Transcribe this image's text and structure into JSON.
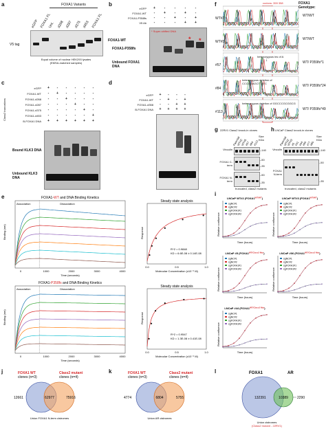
{
  "panel_letters": [
    "a",
    "b",
    "c",
    "d",
    "e",
    "f",
    "g",
    "h",
    "i",
    "j",
    "k",
    "l"
  ],
  "panel_a": {
    "lanes": [
      "eGFP",
      "FOXA1 FL",
      "Unt.",
      "d268",
      "d287",
      "d375",
      "d453",
      "FOXA1 FL"
    ],
    "group_label": "FOXA1 Variants",
    "side_label": "V5 tag",
    "caption_line1": "Equal volume of nuclear HEK293 lysates",
    "caption_line2": "(EMSA-matched samples)"
  },
  "panel_b": {
    "rows": [
      {
        "label": "eGFP",
        "marks": [
          "+",
          "-",
          "-",
          "-",
          "-"
        ]
      },
      {
        "label": "FOXA1-WT",
        "marks": [
          "-",
          "+",
          "-",
          "+",
          "-"
        ]
      },
      {
        "label": "FOXA1-P358fs",
        "marks": [
          "-",
          "-",
          "+",
          "-",
          "+"
        ]
      },
      {
        "label": "V5 Ab",
        "marks": [
          "-",
          "-",
          "-",
          "+",
          "+"
        ]
      }
    ],
    "legend_star": "*",
    "legend_text": "Super-shifted DNA",
    "label_wt": "FOXA1-WT",
    "label_fs": "FOXA1-P358fs",
    "label_unbound": "Unbound FOXA1 DNA"
  },
  "panel_c": {
    "rows": [
      {
        "label": "eGFP",
        "marks": [
          "+",
          "-",
          "-",
          "-",
          "-",
          "-"
        ]
      },
      {
        "label": "FOXA1-WT",
        "marks": [
          "-",
          "+",
          "-",
          "-",
          "-",
          "-"
        ]
      },
      {
        "label": "FOXA1-d268",
        "marks": [
          "-",
          "-",
          "+",
          "-",
          "-",
          "-"
        ]
      },
      {
        "label": "FOXA1-d287",
        "marks": [
          "-",
          "-",
          "-",
          "+",
          "-",
          "-"
        ]
      },
      {
        "label": "FOXA1-d375",
        "marks": [
          "-",
          "-",
          "-",
          "-",
          "+",
          "-"
        ]
      },
      {
        "label": "FOXA1-d453",
        "marks": [
          "-",
          "-",
          "-",
          "-",
          "-",
          "+"
        ]
      },
      {
        "label": "B-FOXA1 DNA",
        "marks": [
          "+",
          "+",
          "+",
          "+",
          "+",
          "+"
        ]
      }
    ],
    "side_label": "Class2 truncations",
    "label_bound": "Bound KLK3 DNA",
    "label_unbound": "Unbound KLK3 DNA"
  },
  "panel_d": {
    "rows": [
      {
        "label": "eGFP",
        "marks": [
          "+",
          "-",
          "-",
          "-"
        ]
      },
      {
        "label": "FOXA1-WT",
        "marks": [
          "-",
          "+",
          "-",
          "+"
        ]
      },
      {
        "label": "FOXA1-d358",
        "marks": [
          "-",
          "-",
          "+",
          "+"
        ]
      },
      {
        "label": "B-FOXA1 DNA",
        "marks": [
          "+",
          "+",
          "+",
          "+"
        ]
      }
    ]
  },
  "panel_e": {
    "kinetics": [
      {
        "title_prefix": "FOXA1-",
        "title_variant": "WT",
        "title_suffix": " and DNA Binding Kinetics"
      },
      {
        "title_prefix": "FOXA1-",
        "title_variant": "P358fs",
        "title_suffix": " and DNA Binding Kinetics"
      }
    ],
    "association_label": "Association",
    "dissociation_label": "Dissociation",
    "xlabel": "Time (seconds)",
    "ylabel": "Binding (nm)",
    "xticks": [
      "0",
      "1000",
      "2000",
      "3000",
      "4000"
    ],
    "steady_title": "Steady state analysis",
    "steady_xlabel": "Molecular Concentration (x10⁻⁶ M)",
    "steady_ylabel": "Response",
    "steady_stats": [
      {
        "r2": "R^2 = 0.9848",
        "kd": "KD = 6.6E-08 ± 0.14E-08"
      },
      {
        "r2": "R^2 = 0.9547",
        "kd": "KD = 1.3E-08 ± 0.41E-08"
      }
    ],
    "steady_xticks": [
      "0.0",
      "0.5",
      "1.0"
    ]
  },
  "panel_f": {
    "header": "codons: 359   358",
    "genotype_title": "FOXA1 Genotype:",
    "samples": [
      {
        "clone": "WT#2",
        "genotype": "WT/WT",
        "note": ""
      },
      {
        "clone": "WT#5",
        "genotype": "WT/WT",
        "note": ""
      },
      {
        "clone": "#57",
        "genotype": "WT/ P359fs*1",
        "note": "heterozygous ins of A"
      },
      {
        "clone": "#84",
        "genotype": "WT/ P359fs*24",
        "note": "heterozygous deletion of CCCGGAGCTTATC"
      },
      {
        "clone": "#113",
        "genotype": "WT/ P359fs*49",
        "note": "heterozygous deletion of GGCCCGCGGCG"
      }
    ],
    "trace_colors": [
      "#2ca02c",
      "#1f77b4",
      "#111111",
      "#d62728"
    ]
  },
  "panel_g": {
    "title": "22RV1 Class2 knock-in clones",
    "lanes": [
      "Parental",
      "WT#2",
      "WT#5",
      "#57",
      "#84",
      "#113"
    ],
    "size_label": "Size KDa",
    "rows": [
      {
        "label": "Vinculin",
        "sizes": [
          "140"
        ]
      },
      {
        "label": "FOXA1 C-term",
        "sizes": [
          "50",
          "35"
        ]
      },
      {
        "label": "FOXA1 N-term",
        "sizes": [
          "50",
          "35"
        ]
      }
    ]
  },
  "panel_h": {
    "title": "LNCaP Class2 knock-in clones",
    "lanes": [
      "Parental",
      "WT#2",
      "WT#3",
      "#5",
      "#31",
      "#44",
      "#60",
      "#77",
      "#80"
    ],
    "size_label": "Size KDa",
    "rows": [
      {
        "label": "Vinculin",
        "sizes": [
          "140"
        ]
      },
      {
        "label": "FOXA1 N-term",
        "sizes": [
          "50",
          "35"
        ]
      }
    ],
    "footer": "truncated, class2 mutants"
  },
  "panel_g_footer": "truncated, class2 mutants",
  "panel_i": {
    "xlabel": "Time (hours)",
    "ylabel": "Relative confluence",
    "legend": [
      "sgNC#1",
      "sgNC#2",
      "sgFOXA1#1",
      "sgFOXA1#2"
    ],
    "legend_colors": [
      "#1f77b4",
      "#d62728",
      "#2ca02c",
      "#9467bd"
    ],
    "plots": [
      {
        "title": "LNCaP WT#2 (FOXA1",
        "sup": "WT/WT",
        "end": ")"
      },
      {
        "title": "LNCaP WT#3 (FOXA1",
        "sup": "WT/WT",
        "end": ")"
      },
      {
        "title": "LNCaP #5 (FOXA1",
        "sup": "WT/Class2 Mut",
        "end": ")"
      },
      {
        "title": "LNCaP #06 (FOXA1",
        "sup": "WT/Class2 Mut",
        "end": ")"
      },
      {
        "title": "LNCaP #44 (FOXA1",
        "sup": "WT/Class2 Mut",
        "end": ")"
      }
    ]
  },
  "panel_j": {
    "left_title": "FOXA1 WT",
    "left_sub": "clones (n=3)",
    "right_title": "Class2 mutant",
    "right_sub": "clones (n=4)",
    "left_only": "12661",
    "overlap": "62977",
    "right_only": "75916",
    "caption": "Union FOXA1 N-term cistromes"
  },
  "panel_k": {
    "left_title": "FOXA1 WT",
    "left_sub": "clones (n=3)",
    "right_title": "Class2 mutant",
    "right_sub": "clones (n=4)",
    "left_only": "4774",
    "overlap": "6804",
    "right_only": "5755",
    "caption": "Union AR cistromes"
  },
  "panel_l": {
    "left_title": "FOXA1",
    "right_title": "AR",
    "left_only": "132391",
    "overlap": "10389",
    "right_only": "2290",
    "caption_line1": "Union cistromes",
    "caption_line2": "(Class2 mutant - 22RV1)"
  }
}
